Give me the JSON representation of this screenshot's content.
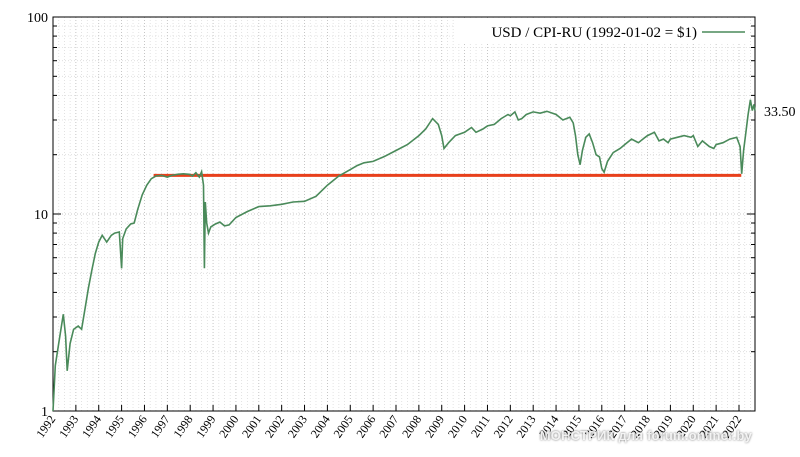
{
  "chart_data": {
    "type": "line",
    "title": "",
    "xlabel": "",
    "ylabel": "",
    "y_scale": "log",
    "ylim": [
      1,
      100
    ],
    "xlim": [
      1992,
      2022.7
    ],
    "grid": true,
    "legend_position": "top-right",
    "y_ticks": [
      "1",
      "10",
      "100"
    ],
    "x_ticks": [
      "1992",
      "1993",
      "1994",
      "1995",
      "1996",
      "1997",
      "1998",
      "1999",
      "2000",
      "2001",
      "2002",
      "2003",
      "2004",
      "2005",
      "2006",
      "2007",
      "2008",
      "2009",
      "2010",
      "2011",
      "2012",
      "2013",
      "2014",
      "2015",
      "2016",
      "2017",
      "2018",
      "2019",
      "2020",
      "2021",
      "2022"
    ],
    "series": [
      {
        "name": "USD / CPI-RU (1992-01-02 = $1)",
        "color": "#4a8a5a",
        "points": [
          [
            1992.0,
            1.0
          ],
          [
            1992.1,
            1.7
          ],
          [
            1992.25,
            2.2
          ],
          [
            1992.45,
            3.1
          ],
          [
            1992.55,
            2.4
          ],
          [
            1992.62,
            1.6
          ],
          [
            1992.75,
            2.2
          ],
          [
            1992.9,
            2.6
          ],
          [
            1993.1,
            2.7
          ],
          [
            1993.25,
            2.6
          ],
          [
            1993.4,
            3.3
          ],
          [
            1993.55,
            4.2
          ],
          [
            1993.7,
            5.2
          ],
          [
            1993.85,
            6.3
          ],
          [
            1994.0,
            7.2
          ],
          [
            1994.15,
            7.8
          ],
          [
            1994.35,
            7.2
          ],
          [
            1994.55,
            7.8
          ],
          [
            1994.7,
            8.0
          ],
          [
            1994.9,
            8.1
          ],
          [
            1995.0,
            5.3
          ],
          [
            1995.05,
            7.5
          ],
          [
            1995.2,
            8.4
          ],
          [
            1995.4,
            8.9
          ],
          [
            1995.55,
            9.0
          ],
          [
            1995.7,
            10.5
          ],
          [
            1995.9,
            12.5
          ],
          [
            1996.1,
            14.0
          ],
          [
            1996.3,
            15.1
          ],
          [
            1996.5,
            15.6
          ],
          [
            1996.75,
            15.7
          ],
          [
            1997.0,
            15.4
          ],
          [
            1997.2,
            15.7
          ],
          [
            1997.45,
            15.9
          ],
          [
            1997.7,
            16.0
          ],
          [
            1997.95,
            15.9
          ],
          [
            1998.1,
            15.6
          ],
          [
            1998.25,
            16.2
          ],
          [
            1998.4,
            15.4
          ],
          [
            1998.5,
            16.4
          ],
          [
            1998.58,
            14.0
          ],
          [
            1998.62,
            5.3
          ],
          [
            1998.66,
            11.5
          ],
          [
            1998.72,
            9.0
          ],
          [
            1998.8,
            8.0
          ],
          [
            1998.9,
            8.6
          ],
          [
            1999.1,
            8.9
          ],
          [
            1999.3,
            9.1
          ],
          [
            1999.5,
            8.7
          ],
          [
            1999.7,
            8.8
          ],
          [
            2000.0,
            9.6
          ],
          [
            2000.5,
            10.3
          ],
          [
            2001.0,
            10.9
          ],
          [
            2001.5,
            11.0
          ],
          [
            2002.0,
            11.2
          ],
          [
            2002.5,
            11.5
          ],
          [
            2003.0,
            11.6
          ],
          [
            2003.5,
            12.3
          ],
          [
            2004.0,
            14.0
          ],
          [
            2004.5,
            15.6
          ],
          [
            2005.0,
            16.8
          ],
          [
            2005.3,
            17.6
          ],
          [
            2005.6,
            18.2
          ],
          [
            2006.0,
            18.5
          ],
          [
            2006.5,
            19.6
          ],
          [
            2007.0,
            21.0
          ],
          [
            2007.5,
            22.5
          ],
          [
            2008.0,
            25.0
          ],
          [
            2008.3,
            27.0
          ],
          [
            2008.6,
            30.5
          ],
          [
            2008.85,
            28.5
          ],
          [
            2009.0,
            25.0
          ],
          [
            2009.1,
            21.5
          ],
          [
            2009.3,
            23.0
          ],
          [
            2009.6,
            25.0
          ],
          [
            2010.0,
            26.0
          ],
          [
            2010.3,
            27.5
          ],
          [
            2010.5,
            26.0
          ],
          [
            2010.8,
            27.0
          ],
          [
            2011.0,
            28.0
          ],
          [
            2011.3,
            28.5
          ],
          [
            2011.6,
            30.5
          ],
          [
            2011.9,
            32.0
          ],
          [
            2012.0,
            31.5
          ],
          [
            2012.2,
            33.0
          ],
          [
            2012.35,
            30.0
          ],
          [
            2012.5,
            30.5
          ],
          [
            2012.7,
            32.0
          ],
          [
            2013.0,
            33.0
          ],
          [
            2013.3,
            32.5
          ],
          [
            2013.6,
            33.2
          ],
          [
            2014.0,
            32.0
          ],
          [
            2014.3,
            30.0
          ],
          [
            2014.6,
            31.0
          ],
          [
            2014.75,
            29.0
          ],
          [
            2014.85,
            25.0
          ],
          [
            2014.95,
            20.0
          ],
          [
            2015.05,
            17.8
          ],
          [
            2015.15,
            21.0
          ],
          [
            2015.3,
            24.5
          ],
          [
            2015.45,
            25.5
          ],
          [
            2015.6,
            23.0
          ],
          [
            2015.75,
            20.0
          ],
          [
            2015.9,
            19.5
          ],
          [
            2016.0,
            17.0
          ],
          [
            2016.1,
            16.3
          ],
          [
            2016.25,
            18.5
          ],
          [
            2016.5,
            20.5
          ],
          [
            2016.8,
            21.5
          ],
          [
            2017.0,
            22.5
          ],
          [
            2017.3,
            24.0
          ],
          [
            2017.6,
            23.0
          ],
          [
            2017.9,
            24.5
          ],
          [
            2018.0,
            25.0
          ],
          [
            2018.3,
            26.0
          ],
          [
            2018.5,
            23.5
          ],
          [
            2018.7,
            24.0
          ],
          [
            2018.9,
            23.0
          ],
          [
            2019.0,
            24.0
          ],
          [
            2019.3,
            24.5
          ],
          [
            2019.6,
            25.0
          ],
          [
            2019.9,
            24.5
          ],
          [
            2020.0,
            25.0
          ],
          [
            2020.2,
            22.0
          ],
          [
            2020.4,
            23.5
          ],
          [
            2020.7,
            22.0
          ],
          [
            2020.9,
            21.5
          ],
          [
            2021.0,
            22.5
          ],
          [
            2021.3,
            23.0
          ],
          [
            2021.6,
            24.0
          ],
          [
            2021.9,
            24.5
          ],
          [
            2022.05,
            22.0
          ],
          [
            2022.12,
            16.0
          ],
          [
            2022.2,
            21.0
          ],
          [
            2022.3,
            26.0
          ],
          [
            2022.4,
            32.0
          ],
          [
            2022.5,
            38.0
          ],
          [
            2022.58,
            33.5
          ],
          [
            2022.65,
            36.0
          ],
          [
            2022.7,
            33.5
          ]
        ]
      }
    ],
    "reference_line": {
      "color": "#e8401c",
      "value": 15.7,
      "x_start": 1996.4,
      "x_end": 2022.1
    },
    "end_label": "33.50"
  },
  "watermark": "МОНСТРИК для forum.onliner.by"
}
